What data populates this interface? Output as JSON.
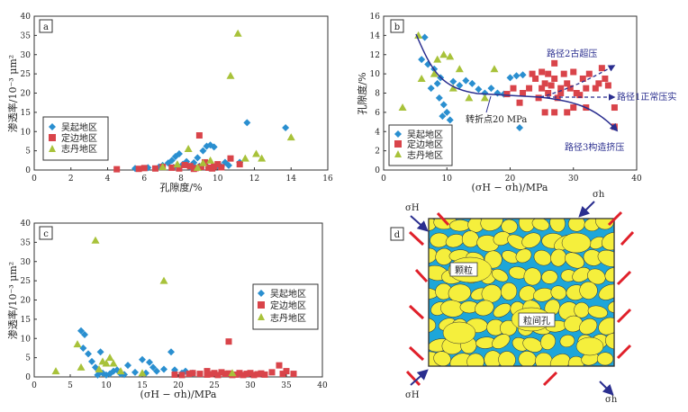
{
  "colors": {
    "wuqi": "#2a8fd0",
    "dingbian": "#d9444a",
    "zhidan": "#a8c23a",
    "navy": "#2a2e8f",
    "grain": "#f5ef3c",
    "pore": "#1da6d9",
    "stress": "#e0202a"
  },
  "legend": [
    "吴起地区",
    "定边地区",
    "志丹地区"
  ],
  "chart_data": [
    {
      "panel": "a",
      "type": "scatter",
      "xlabel": "孔隙度/%",
      "ylabel": "渗透率/10⁻³ μm²",
      "xlim": [
        0,
        16
      ],
      "ylim": [
        0,
        40
      ],
      "xticks": [
        0,
        2,
        4,
        6,
        8,
        10,
        12,
        14,
        16
      ],
      "yticks": [
        0,
        5,
        10,
        15,
        20,
        25,
        30,
        35,
        40
      ],
      "legend_position": "bottom-left",
      "series": [
        {
          "name": "吴起地区",
          "marker": "diamond",
          "points": [
            [
              5.5,
              0.4
            ],
            [
              6.2,
              0.6
            ],
            [
              6.8,
              0.8
            ],
            [
              7,
              1.2
            ],
            [
              7.3,
              1.8
            ],
            [
              7.5,
              2.5
            ],
            [
              7.7,
              3.5
            ],
            [
              7.9,
              4.2
            ],
            [
              8.1,
              1.5
            ],
            [
              8.3,
              2.2
            ],
            [
              8.5,
              0.8
            ],
            [
              8.7,
              1.9
            ],
            [
              8.9,
              3.2
            ],
            [
              9.0,
              1.0
            ],
            [
              9.2,
              5.0
            ],
            [
              9.4,
              6.2
            ],
            [
              9.6,
              6.5
            ],
            [
              9.8,
              6.0
            ],
            [
              10.0,
              1.2
            ],
            [
              10.2,
              0.9
            ],
            [
              10.4,
              2.0
            ],
            [
              10.6,
              1.2
            ],
            [
              11.2,
              2.0
            ],
            [
              11.6,
              12.3
            ],
            [
              13.7,
              11.0
            ],
            [
              9.5,
              0.6
            ],
            [
              8.8,
              0.5
            ],
            [
              7.6,
              0.7
            ]
          ]
        },
        {
          "name": "定边地区",
          "marker": "square",
          "points": [
            [
              4.5,
              0.2
            ],
            [
              5.7,
              0.3
            ],
            [
              6.0,
              0.5
            ],
            [
              6.6,
              0.4
            ],
            [
              7.0,
              0.8
            ],
            [
              7.5,
              0.6
            ],
            [
              7.9,
              0.4
            ],
            [
              8.2,
              1.3
            ],
            [
              8.5,
              1.0
            ],
            [
              8.8,
              0.5
            ],
            [
              9.0,
              9.0
            ],
            [
              9.1,
              0.8
            ],
            [
              9.3,
              2.0
            ],
            [
              9.5,
              0.6
            ],
            [
              9.8,
              0.9
            ],
            [
              10.0,
              1.5
            ],
            [
              10.2,
              0.7
            ],
            [
              10.7,
              3.0
            ],
            [
              11.2,
              1.5
            ],
            [
              8.7,
              0.3
            ],
            [
              9.7,
              0.4
            ]
          ]
        },
        {
          "name": "志丹地区",
          "marker": "triangle",
          "points": [
            [
              7.0,
              0.8
            ],
            [
              7.8,
              1.5
            ],
            [
              8.4,
              5.5
            ],
            [
              9.2,
              1.8
            ],
            [
              9.6,
              2.5
            ],
            [
              10.7,
              24.5
            ],
            [
              11.1,
              35.5
            ],
            [
              11.5,
              3.0
            ],
            [
              12.1,
              4.2
            ],
            [
              12.4,
              3.0
            ],
            [
              14.0,
              8.5
            ],
            [
              8.9,
              0.6
            ]
          ]
        }
      ]
    },
    {
      "panel": "b",
      "type": "scatter",
      "xlabel": "(σH − σh)/MPa",
      "ylabel": "孔隙度/%",
      "xlim": [
        0,
        40
      ],
      "ylim": [
        0,
        16
      ],
      "xticks": [
        0,
        10,
        20,
        30,
        40
      ],
      "yticks": [
        0,
        2,
        4,
        6,
        8,
        10,
        12,
        14,
        16
      ],
      "legend_position": "bottom-left",
      "annotations": [
        "转折点20 MPa",
        "路径2古超压",
        "路径1正常压实",
        "路径3构造挤压"
      ],
      "series": [
        {
          "name": "吴起地区",
          "marker": "diamond",
          "points": [
            [
              6.5,
              13.8
            ],
            [
              6.0,
              11.5
            ],
            [
              7.0,
              11.0
            ],
            [
              8.0,
              10.5
            ],
            [
              9.0,
              9.6
            ],
            [
              8.5,
              9.0
            ],
            [
              7.5,
              8.5
            ],
            [
              8.8,
              7.5
            ],
            [
              9.5,
              6.8
            ],
            [
              10.0,
              6.0
            ],
            [
              9.3,
              5.6
            ],
            [
              10.5,
              5.2
            ],
            [
              11.0,
              9.2
            ],
            [
              12.0,
              8.8
            ],
            [
              13.0,
              9.3
            ],
            [
              14.0,
              9.0
            ],
            [
              15.0,
              8.4
            ],
            [
              16.0,
              8.0
            ],
            [
              17.0,
              8.5
            ],
            [
              18.0,
              8.0
            ],
            [
              19.0,
              7.9
            ],
            [
              20.0,
              9.6
            ],
            [
              21.0,
              9.8
            ],
            [
              21.5,
              4.4
            ],
            [
              22.0,
              9.9
            ]
          ]
        },
        {
          "name": "定边地区",
          "marker": "square",
          "points": [
            [
              19.5,
              7.9
            ],
            [
              20.5,
              8.5
            ],
            [
              21.5,
              7.0
            ],
            [
              22.0,
              8.0
            ],
            [
              23.0,
              8.5
            ],
            [
              23.5,
              10.0
            ],
            [
              24.0,
              9.5
            ],
            [
              24.5,
              7.5
            ],
            [
              25.0,
              10.2
            ],
            [
              25.0,
              8.5
            ],
            [
              25.5,
              9.0
            ],
            [
              26.0,
              8.0
            ],
            [
              26.0,
              10.0
            ],
            [
              26.5,
              8.8
            ],
            [
              27.0,
              11.1
            ],
            [
              27.0,
              9.5
            ],
            [
              27.5,
              7.5
            ],
            [
              28.0,
              8.0
            ],
            [
              28.5,
              10.0
            ],
            [
              29.0,
              9.0
            ],
            [
              29.5,
              8.5
            ],
            [
              30.0,
              10.2
            ],
            [
              30.5,
              8.0
            ],
            [
              31.0,
              7.8
            ],
            [
              31.5,
              9.5
            ],
            [
              32.0,
              6.5
            ],
            [
              32.5,
              10.0
            ],
            [
              33.5,
              8.5
            ],
            [
              34.0,
              9.0
            ],
            [
              34.5,
              10.6
            ],
            [
              35.0,
              9.5
            ],
            [
              35.5,
              8.8
            ],
            [
              36.5,
              6.5
            ],
            [
              36.5,
              4.5
            ],
            [
              25.5,
              6.0
            ],
            [
              27.0,
              6.0
            ],
            [
              29.0,
              6.0
            ],
            [
              30.0,
              6.5
            ],
            [
              32.0,
              8.5
            ],
            [
              28.0,
              8.5
            ]
          ]
        },
        {
          "name": "志丹地区",
          "marker": "triangle",
          "points": [
            [
              3.0,
              6.5
            ],
            [
              5.5,
              14.0
            ],
            [
              6.0,
              9.5
            ],
            [
              8.0,
              10.0
            ],
            [
              8.5,
              11.5
            ],
            [
              9.5,
              12.0
            ],
            [
              10.5,
              11.8
            ],
            [
              11.0,
              8.5
            ],
            [
              12.0,
              10.5
            ],
            [
              13.5,
              7.5
            ],
            [
              16.0,
              7.5
            ],
            [
              17.5,
              10.5
            ]
          ]
        }
      ]
    },
    {
      "panel": "c",
      "type": "scatter",
      "xlabel": "(σH − σh)/MPa",
      "ylabel": "渗透率/10⁻³ μm²",
      "xlim": [
        0,
        40
      ],
      "ylim": [
        0,
        40
      ],
      "xticks": [
        0,
        5,
        10,
        15,
        20,
        25,
        30,
        35,
        40
      ],
      "yticks": [
        0,
        5,
        10,
        15,
        20,
        25,
        30,
        35,
        40
      ],
      "legend_position": "top-right",
      "series": [
        {
          "name": "吴起地区",
          "marker": "diamond",
          "points": [
            [
              6.5,
              12.0
            ],
            [
              7.0,
              11.0
            ],
            [
              6.8,
              7.5
            ],
            [
              7.5,
              6.0
            ],
            [
              8.0,
              4.0
            ],
            [
              8.5,
              2.5
            ],
            [
              9.0,
              1.5
            ],
            [
              9.2,
              6.5
            ],
            [
              9.5,
              1.0
            ],
            [
              10.0,
              0.5
            ],
            [
              10.5,
              0.8
            ],
            [
              11.0,
              1.5
            ],
            [
              11.5,
              1.8
            ],
            [
              12.0,
              0.8
            ],
            [
              13.0,
              3.0
            ],
            [
              14.0,
              1.2
            ],
            [
              15.0,
              4.5
            ],
            [
              15.5,
              1.0
            ],
            [
              16.0,
              3.8
            ],
            [
              16.5,
              2.5
            ],
            [
              17.0,
              1.5
            ],
            [
              18.0,
              2.0
            ],
            [
              19.0,
              6.5
            ],
            [
              19.5,
              1.8
            ],
            [
              20.5,
              1.0
            ],
            [
              21.0,
              1.5
            ],
            [
              22.0,
              1.0
            ],
            [
              8.8,
              0.5
            ],
            [
              12.5,
              0.6
            ]
          ]
        },
        {
          "name": "定边地区",
          "marker": "square",
          "points": [
            [
              19.5,
              0.6
            ],
            [
              20.5,
              0.5
            ],
            [
              21.5,
              0.8
            ],
            [
              22.0,
              1.0
            ],
            [
              23.0,
              0.8
            ],
            [
              24.0,
              1.5
            ],
            [
              24.5,
              0.7
            ],
            [
              25.0,
              1.0
            ],
            [
              25.5,
              0.5
            ],
            [
              26.0,
              1.2
            ],
            [
              26.5,
              0.8
            ],
            [
              27.0,
              9.2
            ],
            [
              27.5,
              0.5
            ],
            [
              28.0,
              0.6
            ],
            [
              28.5,
              1.0
            ],
            [
              29.0,
              0.5
            ],
            [
              29.5,
              0.8
            ],
            [
              30.0,
              1.0
            ],
            [
              30.5,
              0.5
            ],
            [
              31.0,
              0.7
            ],
            [
              32.0,
              0.6
            ],
            [
              33.0,
              1.2
            ],
            [
              34.0,
              3.0
            ],
            [
              34.5,
              0.8
            ],
            [
              35.0,
              1.5
            ],
            [
              36.0,
              0.8
            ],
            [
              24.0,
              0.6
            ],
            [
              27.0,
              0.9
            ],
            [
              31.5,
              0.9
            ]
          ]
        },
        {
          "name": "志丹地区",
          "marker": "triangle",
          "points": [
            [
              3.0,
              1.5
            ],
            [
              6.0,
              8.5
            ],
            [
              6.5,
              2.5
            ],
            [
              8.5,
              35.5
            ],
            [
              9.0,
              2.0
            ],
            [
              9.5,
              4.0
            ],
            [
              10.0,
              3.5
            ],
            [
              10.5,
              5.0
            ],
            [
              11.0,
              3.5
            ],
            [
              12.0,
              1.5
            ],
            [
              15.0,
              1.0
            ],
            [
              18.0,
              25.0
            ],
            [
              27.5,
              1.0
            ]
          ]
        }
      ]
    }
  ],
  "diagram_d": {
    "panel": "d",
    "grain_label": "颗粒",
    "pore_label": "粒间孔",
    "sigma_H": "σH",
    "sigma_h": "σh"
  }
}
